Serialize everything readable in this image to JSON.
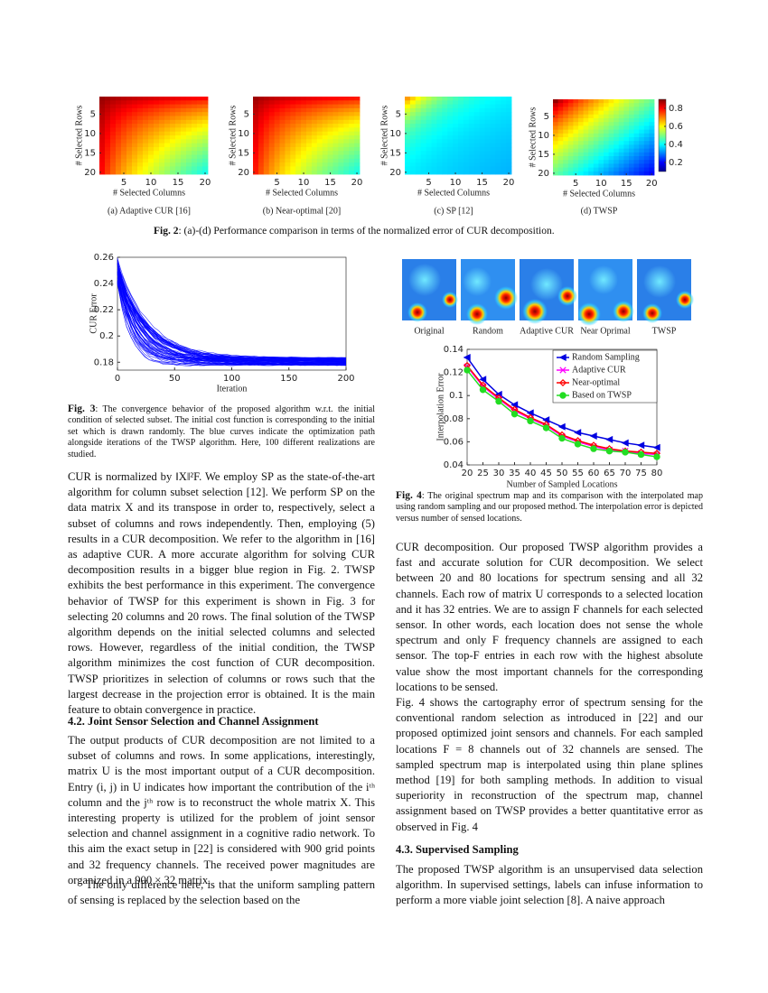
{
  "fig2": {
    "panels": [
      {
        "caption": "(a) Adaptive CUR [16]",
        "xlabel": "# Selected Columns",
        "ylabel": "# Selected Rows"
      },
      {
        "caption": "(b) Near-optimal [20]",
        "xlabel": "# Selected Columns",
        "ylabel": "# Selected Rows"
      },
      {
        "caption": "(c) SP [12]",
        "xlabel": "# Selected Columns",
        "ylabel": "# Selected Rows"
      },
      {
        "caption": "(d) TWSP",
        "xlabel": "# Selected Columns",
        "ylabel": "# Selected Rows"
      }
    ],
    "xlim": [
      0.5,
      20.5
    ],
    "ylim": [
      0.5,
      20.5
    ],
    "xticks": [
      5,
      10,
      15,
      20
    ],
    "yticks": [
      5,
      10,
      15,
      20
    ],
    "colorbar_lim": [
      0.1,
      0.9
    ],
    "colorbar_ticks": [
      0.2,
      0.4,
      0.6,
      0.8
    ],
    "label": "Fig. 2",
    "caption": ": (a)-(d) Performance comparison in terms of the normalized error of CUR decomposition."
  },
  "chart_data": [
    {
      "type": "line",
      "ylabel": "CUR Error",
      "xlabel": "Iteration",
      "xlim": [
        0,
        200
      ],
      "ylim": [
        0.174,
        0.26
      ],
      "xticks": [
        0,
        50,
        100,
        150,
        200
      ],
      "yticks": [
        0.18,
        0.2,
        0.22,
        0.24,
        0.26
      ],
      "color": "#0000ff"
    },
    {
      "type": "line",
      "ylabel": "Interpolation Error",
      "xlabel": "Number of Sampled Locations",
      "x": [
        20,
        25,
        30,
        35,
        40,
        45,
        50,
        55,
        60,
        65,
        70,
        75,
        80
      ],
      "xlim": [
        20,
        80
      ],
      "ylim": [
        0.04,
        0.14
      ],
      "xticks": [
        20,
        25,
        30,
        35,
        40,
        45,
        50,
        55,
        60,
        65,
        70,
        75,
        80
      ],
      "yticks": [
        0.04,
        0.06,
        0.08,
        0.1,
        0.12,
        0.14
      ],
      "legend": "upper right",
      "series": [
        {
          "name": "Random Sampling",
          "color": "#0000e0",
          "marker": "triangle-left",
          "values": [
            0.133,
            0.114,
            0.101,
            0.092,
            0.085,
            0.079,
            0.073,
            0.068,
            0.065,
            0.062,
            0.059,
            0.057,
            0.055
          ]
        },
        {
          "name": "Adaptive CUR",
          "color": "#ff00ff",
          "marker": "cross",
          "values": [
            0.125,
            0.108,
            0.097,
            0.087,
            0.08,
            0.074,
            0.065,
            0.06,
            0.056,
            0.053,
            0.052,
            0.05,
            0.049
          ]
        },
        {
          "name": "Near-optimal",
          "color": "#ff0000",
          "marker": "diamond",
          "values": [
            0.126,
            0.109,
            0.098,
            0.088,
            0.081,
            0.075,
            0.066,
            0.061,
            0.057,
            0.054,
            0.052,
            0.051,
            0.05
          ]
        },
        {
          "name": "Based on TWSP",
          "color": "#22dd22",
          "marker": "circle",
          "values": [
            0.122,
            0.105,
            0.095,
            0.084,
            0.078,
            0.072,
            0.063,
            0.058,
            0.054,
            0.052,
            0.051,
            0.049,
            0.047
          ]
        }
      ]
    }
  ],
  "fig3": {
    "label": "Fig. 3",
    "caption": ": The convergence behavior of the proposed algorithm w.r.t. the initial condition of selected subset. The initial cost function is corresponding to the initial set which is drawn randomly. The blue curves indicate the optimization path alongside iterations of the TWSP algorithm. Here, 100 different realizations are studied."
  },
  "fig4": {
    "maps": [
      "Original",
      "Random",
      "Adaptive CUR",
      "Near Oprimal",
      "TWSP"
    ],
    "label": "Fig. 4",
    "caption": ": The original spectrum map and its comparison with the interpolated map using random sampling and our proposed method. The interpolation error is depicted versus number of sensed locations."
  },
  "left": {
    "p1": "CUR is normalized by ‖X‖²F. We employ SP as the state-of-the-art algorithm for column subset selection [12]. We perform SP on the data matrix X and its transpose in order to, respectively, select a subset of columns and rows independently. Then, employing (5) results in a CUR decomposition. We refer to the algorithm in [16] as adaptive CUR. A more accurate algorithm for solving CUR decomposition results in a bigger blue region in Fig. 2. TWSP exhibits the best performance in this experiment. The convergence behavior of TWSP for this experiment is shown in Fig. 3 for selecting 20 columns and 20 rows. The final solution of the TWSP algorithm depends on the initial selected columns and selected rows. However, regardless of the initial condition, the TWSP algorithm minimizes the cost function of CUR decomposition. TWSP prioritizes in selection of columns or rows such that the largest decrease in the projection error is obtained. It is the main feature to obtain convergence in practice.",
    "heading": "4.2.  Joint Sensor Selection and Channel Assignment",
    "p2": "The output products of CUR decomposition are not limited to a subset of columns and rows. In some applications, interestingly, matrix U is the most important output of a CUR decomposition. Entry (i, j) in U indicates how important the contribution of the iᵗʰ column and the jᵗʰ row is to reconstruct the whole matrix X. This interesting property is utilized for the problem of joint sensor selection and channel assignment in a cognitive radio network. To this aim the exact setup in [22] is considered with 900 grid points and 32 frequency channels. The received power magnitudes are organized in a 900 × 32 matrix.",
    "p3": "The only difference here, is that the uniform sampling pattern of sensing is replaced by the selection based on the"
  },
  "right": {
    "p1": "CUR decomposition. Our proposed TWSP algorithm provides a fast and accurate solution for CUR decomposition. We select between 20 and 80 locations for spectrum sensing and all 32 channels. Each row of matrix U corresponds to a selected location and it has 32 entries. We are to assign F channels for each selected sensor. In other words, each location does not sense the whole spectrum and only F frequency channels are assigned to each sensor. The top-F entries in each row with the highest absolute value show the most important channels for the corresponding locations to be sensed.",
    "p2": "Fig. 4 shows the cartography error of spectrum sensing for the conventional random selection as introduced in [22] and our proposed optimized joint sensors and channels. For each sampled locations F = 8 channels out of 32 channels are sensed. The sampled spectrum map is interpolated using thin plane splines method [19] for both sampling methods. In addition to visual superiority in reconstruction of the spectrum map, channel assignment based on TWSP provides a better quantitative error as observed in Fig. 4",
    "heading": "4.3.  Supervised Sampling",
    "p3": "The proposed TWSP algorithm is an unsupervised data selection algorithm. In supervised settings, labels can infuse information to perform a more viable joint selection [8]. A naive approach"
  }
}
